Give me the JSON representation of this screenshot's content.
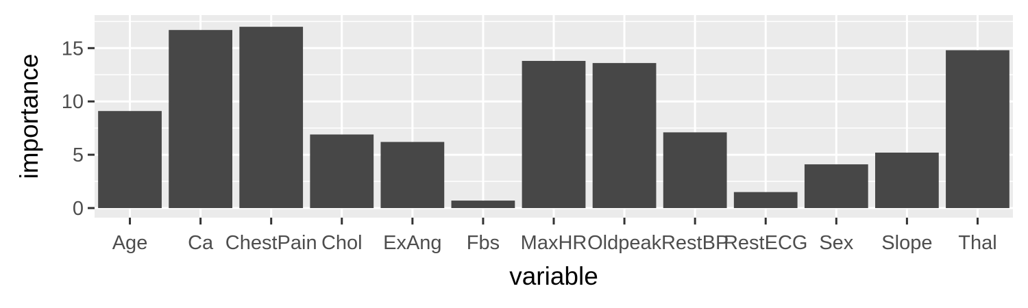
{
  "chart_data": {
    "type": "bar",
    "categories": [
      "Age",
      "Ca",
      "ChestPain",
      "Chol",
      "ExAng",
      "Fbs",
      "MaxHR",
      "Oldpeak",
      "RestBP",
      "RestECG",
      "Sex",
      "Slope",
      "Thal"
    ],
    "values": [
      9.1,
      16.7,
      17.0,
      6.9,
      6.2,
      0.7,
      13.8,
      13.6,
      7.1,
      1.5,
      4.1,
      5.2,
      14.8
    ],
    "title": "",
    "xlabel": "variable",
    "ylabel": "importance",
    "ylim": [
      -0.9,
      18.1
    ],
    "yticks": [
      0,
      5,
      10,
      15
    ],
    "grid": true,
    "colors": {
      "bar": "#474747",
      "panel": "#ebebeb",
      "grid": "#ffffff",
      "tick_text": "#4d4d4d",
      "tick_mark": "#333333"
    }
  }
}
